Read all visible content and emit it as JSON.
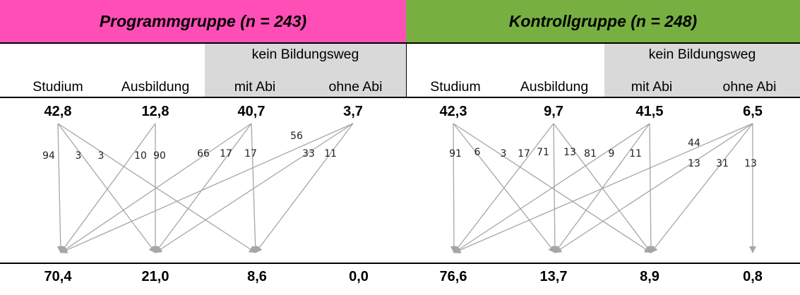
{
  "panels": [
    {
      "title": "Programmgruppe (n = 243)",
      "band_color": "#ff4fb6",
      "subheader": "kein Bildungsweg",
      "columns": [
        "Studium",
        "Ausbildung",
        "mit Abi",
        "ohne Abi"
      ],
      "top_values": [
        "42,8",
        "12,8",
        "40,7",
        "3,7"
      ],
      "bottom_values": [
        "70,4",
        "21,0",
        "8,6",
        "0,0"
      ],
      "flows": [
        {
          "from": 0,
          "to": 0,
          "value": "94"
        },
        {
          "from": 0,
          "to": 1,
          "value": "3"
        },
        {
          "from": 0,
          "to": 2,
          "value": "3"
        },
        {
          "from": 1,
          "to": 0,
          "value": "10"
        },
        {
          "from": 1,
          "to": 1,
          "value": "90"
        },
        {
          "from": 2,
          "to": 0,
          "value": "66"
        },
        {
          "from": 2,
          "to": 1,
          "value": "17"
        },
        {
          "from": 2,
          "to": 2,
          "value": "17"
        },
        {
          "from": 3,
          "to": 0,
          "value": "56"
        },
        {
          "from": 3,
          "to": 1,
          "value": "33"
        },
        {
          "from": 3,
          "to": 2,
          "value": "11"
        }
      ]
    },
    {
      "title": "Kontrollgruppe (n = 248)",
      "band_color": "#77b041",
      "subheader": "kein Bildungsweg",
      "columns": [
        "Studium",
        "Ausbildung",
        "mit Abi",
        "ohne Abi"
      ],
      "top_values": [
        "42,3",
        "9,7",
        "41,5",
        "6,5"
      ],
      "bottom_values": [
        "76,6",
        "13,7",
        "8,9",
        "0,8"
      ],
      "flows": [
        {
          "from": 0,
          "to": 0,
          "value": "91"
        },
        {
          "from": 0,
          "to": 1,
          "value": "6"
        },
        {
          "from": 0,
          "to": 2,
          "value": "3"
        },
        {
          "from": 1,
          "to": 0,
          "value": "17"
        },
        {
          "from": 1,
          "to": 1,
          "value": "71"
        },
        {
          "from": 1,
          "to": 2,
          "value": "13"
        },
        {
          "from": 2,
          "to": 0,
          "value": "81"
        },
        {
          "from": 2,
          "to": 1,
          "value": "9"
        },
        {
          "from": 2,
          "to": 2,
          "value": "11"
        },
        {
          "from": 3,
          "to": 0,
          "value": "44"
        },
        {
          "from": 3,
          "to": 1,
          "value": "13"
        },
        {
          "from": 3,
          "to": 2,
          "value": "31"
        },
        {
          "from": 3,
          "to": 3,
          "value": "13"
        }
      ]
    }
  ],
  "colors": {
    "arrow": "#a6a6a6",
    "subheader_bg": "#d9d9d9"
  }
}
